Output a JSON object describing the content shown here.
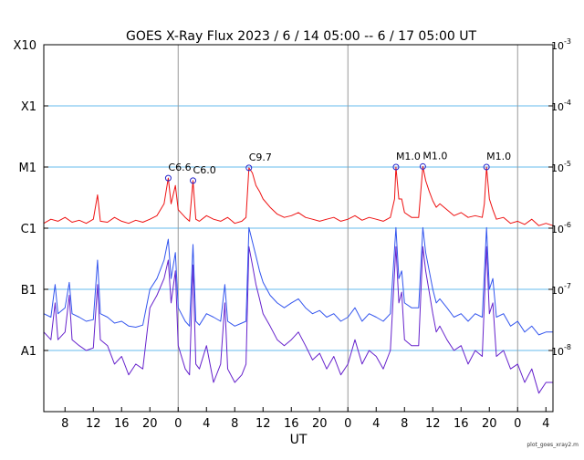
{
  "chart_data": {
    "type": "line",
    "title": "GOES X-Ray Flux   2023  /  6  /  14    05:00 --   6  /  17    05:00    UT",
    "xlabel": "UT",
    "footer_note": "plot_goes_xray2.m",
    "x_range_hours": [
      0,
      72
    ],
    "y_scale": "log",
    "ylim": [
      1e-09,
      0.001
    ],
    "grid": true,
    "x_tick_labels": [
      "8",
      "12",
      "16",
      "20",
      "0",
      "4",
      "8",
      "12",
      "16",
      "20",
      "0",
      "4",
      "8",
      "12",
      "16",
      "20",
      "0",
      "4"
    ],
    "x_tick_hours": [
      3,
      7,
      11,
      15,
      19,
      23,
      27,
      31,
      35,
      39,
      43,
      47,
      51,
      55,
      59,
      63,
      67,
      71
    ],
    "day_boundary_hours": [
      19,
      43,
      67
    ],
    "left_class_labels": [
      {
        "label": "X10",
        "flux": 0.001
      },
      {
        "label": "X1",
        "flux": 0.0001
      },
      {
        "label": "M1",
        "flux": 1e-05
      },
      {
        "label": "C1",
        "flux": 1e-06
      },
      {
        "label": "B1",
        "flux": 1e-07
      },
      {
        "label": "A1",
        "flux": 1e-08
      }
    ],
    "right_tick_labels": [
      {
        "base": "10",
        "exp": "-3",
        "flux": 0.001
      },
      {
        "base": "10",
        "exp": "-4",
        "flux": 0.0001
      },
      {
        "base": "10",
        "exp": "-5",
        "flux": 1e-05
      },
      {
        "base": "10",
        "exp": "-6",
        "flux": 1e-06
      },
      {
        "base": "10",
        "exp": "-7",
        "flux": 1e-07
      },
      {
        "base": "10",
        "exp": "-8",
        "flux": 1e-08
      }
    ],
    "flares": [
      {
        "label": "C6.6",
        "hour": 17.6,
        "flux": 6.6e-06
      },
      {
        "label": "C6.0",
        "hour": 21.1,
        "flux": 6e-06
      },
      {
        "label": "C9.7",
        "hour": 29.0,
        "flux": 9.7e-06
      },
      {
        "label": "M1.0",
        "hour": 49.8,
        "flux": 1e-05
      },
      {
        "label": "M1.0",
        "hour": 53.6,
        "flux": 1.02e-05
      },
      {
        "label": "M1.0",
        "hour": 62.6,
        "flux": 1e-05
      }
    ],
    "series": [
      {
        "color": "#ee1111",
        "points": [
          [
            0,
            1.2e-06
          ],
          [
            1,
            1.4e-06
          ],
          [
            2,
            1.3e-06
          ],
          [
            3,
            1.5e-06
          ],
          [
            4,
            1.25e-06
          ],
          [
            5,
            1.35e-06
          ],
          [
            6,
            1.2e-06
          ],
          [
            7,
            1.4e-06
          ],
          [
            7.6,
            3.5e-06
          ],
          [
            8,
            1.3e-06
          ],
          [
            9,
            1.25e-06
          ],
          [
            10,
            1.5e-06
          ],
          [
            11,
            1.3e-06
          ],
          [
            12,
            1.2e-06
          ],
          [
            13,
            1.35e-06
          ],
          [
            14,
            1.25e-06
          ],
          [
            15,
            1.4e-06
          ],
          [
            16,
            1.6e-06
          ],
          [
            17,
            2.5e-06
          ],
          [
            17.6,
            6.6e-06
          ],
          [
            18,
            2.5e-06
          ],
          [
            18.6,
            5e-06
          ],
          [
            19,
            2e-06
          ],
          [
            20,
            1.5e-06
          ],
          [
            20.6,
            1.3e-06
          ],
          [
            21.1,
            6e-06
          ],
          [
            21.5,
            1.4e-06
          ],
          [
            22,
            1.3e-06
          ],
          [
            23,
            1.6e-06
          ],
          [
            24,
            1.4e-06
          ],
          [
            25,
            1.3e-06
          ],
          [
            26,
            1.5e-06
          ],
          [
            27,
            1.2e-06
          ],
          [
            28,
            1.3e-06
          ],
          [
            28.6,
            1.5e-06
          ],
          [
            29,
            9.7e-06
          ],
          [
            29.5,
            8e-06
          ],
          [
            30,
            5e-06
          ],
          [
            30.5,
            4e-06
          ],
          [
            31,
            3e-06
          ],
          [
            32,
            2.2e-06
          ],
          [
            33,
            1.7e-06
          ],
          [
            34,
            1.5e-06
          ],
          [
            35,
            1.6e-06
          ],
          [
            36,
            1.8e-06
          ],
          [
            37,
            1.5e-06
          ],
          [
            38,
            1.4e-06
          ],
          [
            39,
            1.3e-06
          ],
          [
            40,
            1.4e-06
          ],
          [
            41,
            1.5e-06
          ],
          [
            42,
            1.3e-06
          ],
          [
            43,
            1.4e-06
          ],
          [
            44,
            1.6e-06
          ],
          [
            45,
            1.35e-06
          ],
          [
            46,
            1.5e-06
          ],
          [
            47,
            1.4e-06
          ],
          [
            48,
            1.3e-06
          ],
          [
            49,
            1.5e-06
          ],
          [
            49.6,
            3e-06
          ],
          [
            49.8,
            1e-05
          ],
          [
            50.2,
            3e-06
          ],
          [
            50.6,
            3e-06
          ],
          [
            51,
            1.8e-06
          ],
          [
            52,
            1.5e-06
          ],
          [
            53,
            1.5e-06
          ],
          [
            53.6,
            1.02e-05
          ],
          [
            54,
            6e-06
          ],
          [
            54.5,
            4e-06
          ],
          [
            55,
            2.8e-06
          ],
          [
            55.5,
            2.2e-06
          ],
          [
            56,
            2.5e-06
          ],
          [
            57,
            2e-06
          ],
          [
            58,
            1.6e-06
          ],
          [
            59,
            1.8e-06
          ],
          [
            60,
            1.5e-06
          ],
          [
            61,
            1.6e-06
          ],
          [
            62,
            1.5e-06
          ],
          [
            62.3,
            2.5e-06
          ],
          [
            62.6,
            1e-05
          ],
          [
            63,
            3e-06
          ],
          [
            63.5,
            2e-06
          ],
          [
            64,
            1.4e-06
          ],
          [
            65,
            1.5e-06
          ],
          [
            66,
            1.2e-06
          ],
          [
            67,
            1.3e-06
          ],
          [
            68,
            1.15e-06
          ],
          [
            69,
            1.4e-06
          ],
          [
            70,
            1.1e-06
          ],
          [
            71,
            1.2e-06
          ],
          [
            72,
            1.1e-06
          ]
        ]
      },
      {
        "color": "#3355ee",
        "points": [
          [
            0,
            4e-08
          ],
          [
            1,
            3.5e-08
          ],
          [
            1.6,
            1.2e-07
          ],
          [
            2,
            4e-08
          ],
          [
            3,
            5e-08
          ],
          [
            3.6,
            1.3e-07
          ],
          [
            4,
            4e-08
          ],
          [
            5,
            3.5e-08
          ],
          [
            6,
            3e-08
          ],
          [
            7,
            3.2e-08
          ],
          [
            7.6,
            3e-07
          ],
          [
            8,
            4e-08
          ],
          [
            9,
            3.5e-08
          ],
          [
            10,
            2.8e-08
          ],
          [
            11,
            3e-08
          ],
          [
            12,
            2.5e-08
          ],
          [
            13,
            2.4e-08
          ],
          [
            14,
            2.6e-08
          ],
          [
            15,
            1e-07
          ],
          [
            16,
            1.5e-07
          ],
          [
            17,
            3e-07
          ],
          [
            17.6,
            6.6e-07
          ],
          [
            18,
            1.5e-07
          ],
          [
            18.6,
            4e-07
          ],
          [
            19,
            5e-08
          ],
          [
            20,
            3e-08
          ],
          [
            20.6,
            2.5e-08
          ],
          [
            21.1,
            5.4e-07
          ],
          [
            21.5,
            3e-08
          ],
          [
            22,
            2.6e-08
          ],
          [
            23,
            4e-08
          ],
          [
            24,
            3.5e-08
          ],
          [
            25,
            3e-08
          ],
          [
            25.6,
            1.2e-07
          ],
          [
            26,
            3e-08
          ],
          [
            27,
            2.5e-08
          ],
          [
            28,
            2.8e-08
          ],
          [
            28.6,
            3e-08
          ],
          [
            29,
            1.02e-06
          ],
          [
            29.5,
            6e-07
          ],
          [
            30,
            3.5e-07
          ],
          [
            30.5,
            2e-07
          ],
          [
            31,
            1.3e-07
          ],
          [
            32,
            8e-08
          ],
          [
            33,
            6e-08
          ],
          [
            34,
            5e-08
          ],
          [
            35,
            6e-08
          ],
          [
            36,
            7e-08
          ],
          [
            37,
            5e-08
          ],
          [
            38,
            4e-08
          ],
          [
            39,
            4.5e-08
          ],
          [
            40,
            3.5e-08
          ],
          [
            41,
            4e-08
          ],
          [
            42,
            3e-08
          ],
          [
            43,
            3.5e-08
          ],
          [
            44,
            5e-08
          ],
          [
            45,
            3e-08
          ],
          [
            46,
            4e-08
          ],
          [
            47,
            3.5e-08
          ],
          [
            48,
            3e-08
          ],
          [
            49,
            4e-08
          ],
          [
            49.8,
            1.02e-06
          ],
          [
            50.2,
            1.5e-07
          ],
          [
            50.6,
            2e-07
          ],
          [
            51,
            6e-08
          ],
          [
            52,
            5e-08
          ],
          [
            53,
            5e-08
          ],
          [
            53.6,
            1.02e-06
          ],
          [
            54,
            4e-07
          ],
          [
            54.5,
            2e-07
          ],
          [
            55,
            1e-07
          ],
          [
            55.5,
            6e-08
          ],
          [
            56,
            7e-08
          ],
          [
            57,
            5e-08
          ],
          [
            58,
            3.5e-08
          ],
          [
            59,
            4e-08
          ],
          [
            60,
            3e-08
          ],
          [
            61,
            4e-08
          ],
          [
            62,
            3.5e-08
          ],
          [
            62.6,
            1.02e-06
          ],
          [
            63,
            1e-07
          ],
          [
            63.5,
            1.5e-07
          ],
          [
            64,
            3.5e-08
          ],
          [
            65,
            4e-08
          ],
          [
            66,
            2.5e-08
          ],
          [
            67,
            3e-08
          ],
          [
            68,
            2e-08
          ],
          [
            69,
            2.5e-08
          ],
          [
            70,
            1.8e-08
          ],
          [
            71,
            2e-08
          ],
          [
            72,
            2e-08
          ]
        ]
      },
      {
        "color": "#6622cc",
        "points": [
          [
            0,
            2e-08
          ],
          [
            1,
            1.5e-08
          ],
          [
            1.6,
            6e-08
          ],
          [
            2,
            1.5e-08
          ],
          [
            3,
            2e-08
          ],
          [
            3.6,
            8e-08
          ],
          [
            4,
            1.5e-08
          ],
          [
            5,
            1.2e-08
          ],
          [
            6,
            1e-08
          ],
          [
            7,
            1.1e-08
          ],
          [
            7.6,
            1.2e-07
          ],
          [
            8,
            1.5e-08
          ],
          [
            9,
            1.2e-08
          ],
          [
            10,
            6e-09
          ],
          [
            11,
            8e-09
          ],
          [
            12,
            4e-09
          ],
          [
            13,
            6e-09
          ],
          [
            14,
            5e-09
          ],
          [
            15,
            5e-08
          ],
          [
            16,
            8e-08
          ],
          [
            17,
            1.5e-07
          ],
          [
            17.6,
            3e-07
          ],
          [
            18,
            6e-08
          ],
          [
            18.6,
            2e-07
          ],
          [
            19,
            1.2e-08
          ],
          [
            20,
            5e-09
          ],
          [
            20.6,
            4e-09
          ],
          [
            21.1,
            2.5e-07
          ],
          [
            21.5,
            6e-09
          ],
          [
            22,
            5e-09
          ],
          [
            23,
            1.2e-08
          ],
          [
            24,
            3e-09
          ],
          [
            25,
            6e-09
          ],
          [
            25.6,
            6e-08
          ],
          [
            26,
            5e-09
          ],
          [
            27,
            3e-09
          ],
          [
            28,
            4e-09
          ],
          [
            28.6,
            6e-09
          ],
          [
            29,
            5e-07
          ],
          [
            29.5,
            2.5e-07
          ],
          [
            30,
            1.2e-07
          ],
          [
            30.5,
            7e-08
          ],
          [
            31,
            4e-08
          ],
          [
            32,
            2.5e-08
          ],
          [
            33,
            1.5e-08
          ],
          [
            34,
            1.2e-08
          ],
          [
            35,
            1.5e-08
          ],
          [
            36,
            2e-08
          ],
          [
            37,
            1.2e-08
          ],
          [
            38,
            7e-09
          ],
          [
            39,
            9e-09
          ],
          [
            40,
            5e-09
          ],
          [
            41,
            8e-09
          ],
          [
            42,
            4e-09
          ],
          [
            43,
            6e-09
          ],
          [
            44,
            1.5e-08
          ],
          [
            45,
            6e-09
          ],
          [
            46,
            1e-08
          ],
          [
            47,
            8e-09
          ],
          [
            48,
            5e-09
          ],
          [
            49,
            1e-08
          ],
          [
            49.8,
            5e-07
          ],
          [
            50.2,
            6e-08
          ],
          [
            50.6,
            9e-08
          ],
          [
            51,
            1.5e-08
          ],
          [
            52,
            1.2e-08
          ],
          [
            53,
            1.2e-08
          ],
          [
            53.6,
            5e-07
          ],
          [
            54,
            2e-07
          ],
          [
            54.5,
            9e-08
          ],
          [
            55,
            4e-08
          ],
          [
            55.5,
            2e-08
          ],
          [
            56,
            2.5e-08
          ],
          [
            57,
            1.5e-08
          ],
          [
            58,
            1e-08
          ],
          [
            59,
            1.2e-08
          ],
          [
            60,
            6e-09
          ],
          [
            61,
            1e-08
          ],
          [
            62,
            8e-09
          ],
          [
            62.6,
            5e-07
          ],
          [
            63,
            4e-08
          ],
          [
            63.5,
            6e-08
          ],
          [
            64,
            8e-09
          ],
          [
            65,
            1e-08
          ],
          [
            66,
            5e-09
          ],
          [
            67,
            6e-09
          ],
          [
            68,
            3e-09
          ],
          [
            69,
            5e-09
          ],
          [
            70,
            2e-09
          ],
          [
            71,
            3e-09
          ],
          [
            72,
            3e-09
          ]
        ]
      }
    ]
  },
  "colors": {
    "grid_line": "#66bbee",
    "day_line": "#999999",
    "axis": "#000000",
    "flare_marker": "#2222cc"
  }
}
